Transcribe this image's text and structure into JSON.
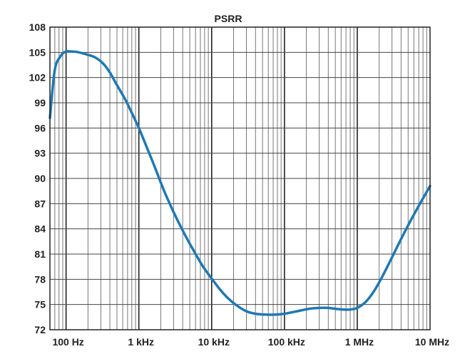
{
  "chart_data": {
    "type": "line",
    "title": "PSRR",
    "xscale": "log",
    "xlim": [
      60,
      10000000
    ],
    "ylim": [
      72,
      108
    ],
    "yticks": [
      72,
      75,
      78,
      81,
      84,
      87,
      90,
      93,
      96,
      99,
      102,
      105,
      108
    ],
    "xticks": [
      {
        "value": 100,
        "label": "100 Hz"
      },
      {
        "value": 1000,
        "label": "1 kHz"
      },
      {
        "value": 10000,
        "label": "10 kHz"
      },
      {
        "value": 100000,
        "label": "100 kHz"
      },
      {
        "value": 1000000,
        "label": "1 MHz"
      },
      {
        "value": 10000000,
        "label": "10 MHz"
      }
    ],
    "grid": true,
    "series": [
      {
        "name": "PSRR",
        "color": "#1f78b4",
        "x": [
          60,
          70,
          85,
          100,
          120,
          150,
          200,
          250,
          320,
          400,
          500,
          650,
          800,
          1000,
          1300,
          1700,
          2200,
          3000,
          4000,
          5500,
          7500,
          10000,
          13000,
          17000,
          22000,
          30000,
          40000,
          55000,
          75000,
          100000,
          130000,
          170000,
          220000,
          300000,
          400000,
          500000,
          650000,
          800000,
          1000000,
          1300000,
          1700000,
          2200000,
          3000000,
          4000000,
          5500000,
          7500000,
          10000000
        ],
        "values": [
          97.2,
          102.9,
          104.6,
          105.1,
          105.1,
          105.0,
          104.7,
          104.4,
          103.7,
          102.6,
          101.1,
          99.4,
          97.8,
          96.0,
          93.6,
          91.1,
          88.6,
          86.0,
          83.8,
          81.6,
          79.6,
          78.1,
          76.8,
          75.7,
          74.9,
          74.2,
          73.9,
          73.8,
          73.8,
          73.9,
          74.1,
          74.3,
          74.5,
          74.6,
          74.6,
          74.5,
          74.4,
          74.4,
          74.6,
          75.3,
          76.6,
          78.3,
          80.6,
          82.8,
          85.1,
          87.2,
          89.1
        ]
      }
    ]
  }
}
